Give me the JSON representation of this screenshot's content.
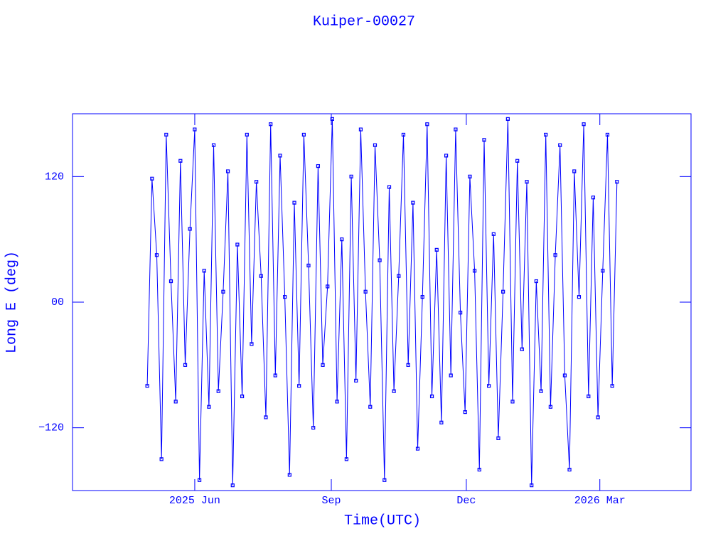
{
  "chart_data": {
    "type": "scatter",
    "title": "Kuiper-00027",
    "x_label": "Time(UTC)",
    "y_label": "Long E (deg)",
    "color": "#0000ff",
    "xlim": [
      2025.188,
      2026.33
    ],
    "ylim": [
      -180,
      180
    ],
    "xticks": [
      {
        "value": 2025.4137,
        "label": "2025 Jun"
      },
      {
        "value": 2025.6658,
        "label": "Sep"
      },
      {
        "value": 2025.9151,
        "label": "Dec"
      },
      {
        "value": 2026.1616,
        "label": "2026 Mar"
      }
    ],
    "yticks": [
      {
        "value": -120,
        "label": "−120"
      },
      {
        "value": 0,
        "label": "00"
      },
      120
    ],
    "x": [
      2025.326,
      2025.3348,
      2025.3435,
      2025.3523,
      2025.361,
      2025.3698,
      2025.3786,
      2025.3873,
      2025.3961,
      2025.4048,
      2025.4136,
      2025.4224,
      2025.4311,
      2025.4399,
      2025.4486,
      2025.4574,
      2025.4662,
      2025.4749,
      2025.4837,
      2025.4924,
      2025.5012,
      2025.51,
      2025.5187,
      2025.5275,
      2025.5362,
      2025.545,
      2025.5538,
      2025.5625,
      2025.5713,
      2025.58,
      2025.5888,
      2025.5976,
      2025.6063,
      2025.6151,
      2025.6238,
      2025.6326,
      2025.6414,
      2025.6501,
      2025.6589,
      2025.6676,
      2025.6764,
      2025.6852,
      2025.6939,
      2025.7027,
      2025.7114,
      2025.7202,
      2025.729,
      2025.7377,
      2025.7465,
      2025.7552,
      2025.764,
      2025.7728,
      2025.7815,
      2025.7903,
      2025.799,
      2025.8078,
      2025.8166,
      2025.8253,
      2025.8341,
      2025.8428,
      2025.8516,
      2025.8604,
      2025.8691,
      2025.8779,
      2025.8866,
      2025.8954,
      2025.9042,
      2025.9129,
      2025.9217,
      2025.9304,
      2025.9392,
      2025.948,
      2025.9567,
      2025.9655,
      2025.9742,
      2025.983,
      2025.9918,
      2026.0005,
      2026.0093,
      2026.018,
      2026.0268,
      2026.0356,
      2026.0443,
      2026.0531,
      2026.0618,
      2026.0706,
      2026.0794,
      2026.0881,
      2026.0969,
      2026.1056,
      2026.1144,
      2026.1232,
      2026.1319,
      2026.1407,
      2026.1494,
      2026.1582,
      2026.167,
      2026.1757,
      2026.1845,
      2026.1932
    ],
    "values": [
      -80,
      118,
      45,
      -150,
      160,
      20,
      -95,
      135,
      -60,
      70,
      165,
      -170,
      30,
      -100,
      150,
      -85,
      10,
      125,
      -175,
      55,
      -90,
      160,
      -40,
      115,
      25,
      -110,
      170,
      -70,
      140,
      5,
      -165,
      95,
      -80,
      160,
      35,
      -120,
      130,
      -60,
      15,
      175,
      -95,
      60,
      -150,
      120,
      -75,
      165,
      10,
      -100,
      150,
      40,
      -170,
      110,
      -85,
      25,
      160,
      -60,
      95,
      -140,
      5,
      170,
      -90,
      50,
      -115,
      140,
      -70,
      165,
      -10,
      -105,
      120,
      30,
      -160,
      155,
      -80,
      65,
      -130,
      10,
      175,
      -95,
      135,
      -45,
      115,
      -175,
      20,
      -85,
      160,
      -100,
      45,
      150,
      -70,
      -160,
      125,
      5,
      170,
      -90,
      100,
      -110,
      30,
      160,
      -80,
      115
    ]
  }
}
